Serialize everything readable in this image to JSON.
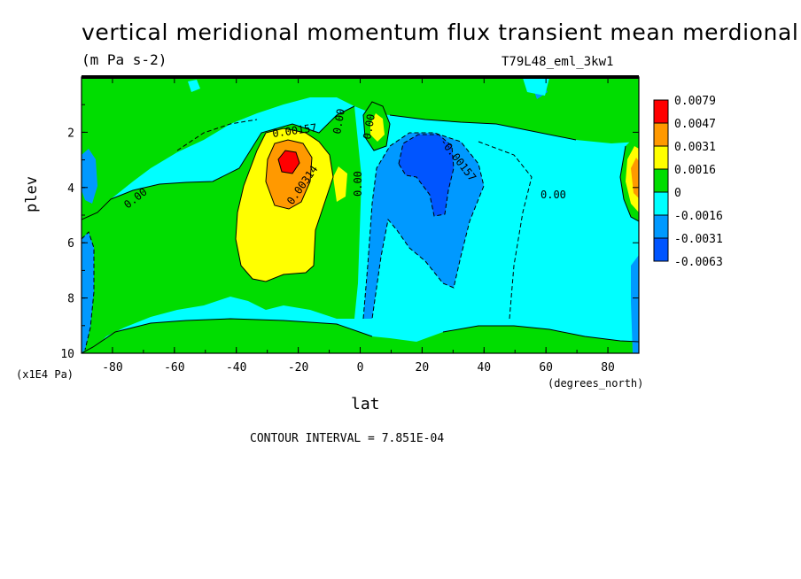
{
  "chart_data": {
    "type": "contour",
    "title": "vertical meridional momentum flux transient mean merdional",
    "units": "(m Pa s-2)",
    "run_id": "T79L48_eml_3kw1",
    "xlabel": "lat",
    "x_units": "(degrees_north)",
    "ylabel": "plev",
    "y_scale_note": "(x1E4 Pa)",
    "contour_interval_text": "CONTOUR INTERVAL = 7.851E-04",
    "xlim": [
      -90,
      90
    ],
    "ylim": [
      10,
      0
    ],
    "x_ticks": [
      -80,
      -60,
      -40,
      -20,
      0,
      20,
      40,
      60,
      80
    ],
    "y_ticks": [
      2,
      4,
      6,
      8,
      10
    ],
    "colorbar": {
      "levels": [
        "0.0079",
        "0.0047",
        "0.0031",
        "0.0016",
        "0",
        "-0.0016",
        "-0.0031",
        "-0.0063"
      ],
      "colors": [
        "#ff0000",
        "#ff9900",
        "#ffff00",
        "#00dd00",
        "#00ffff",
        "#0099ff",
        "#0055ff"
      ]
    },
    "contour_labels": [
      "0.00157",
      "0.00314",
      "0.00",
      "0.00",
      "0.00",
      "0.00",
      "-0.00157",
      "0.00"
    ],
    "features": [
      {
        "name": "positive maximum",
        "lat": -22,
        "plev": 3.2
      },
      {
        "name": "negative minimum",
        "lat": 22,
        "plev": 3.5
      }
    ]
  }
}
